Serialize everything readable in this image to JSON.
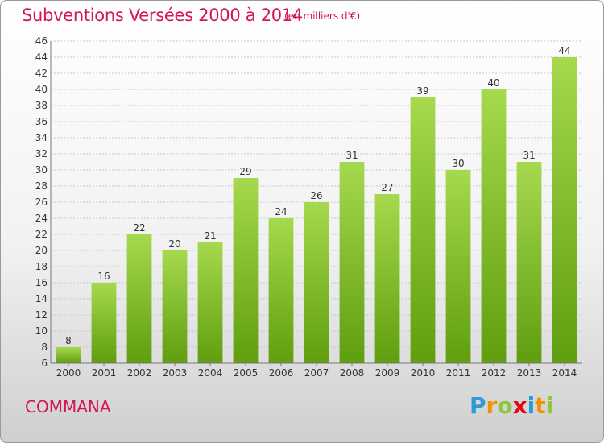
{
  "header": {
    "title": "Subventions Versées 2000 à 2014",
    "subtitle": "(en milliers d'€)"
  },
  "footer": {
    "commune": "COMMANA",
    "logo_letters": [
      "P",
      "r",
      "o",
      "x",
      "i",
      "t",
      "i"
    ],
    "logo_colors": [
      "#2e9bd6",
      "#f39200",
      "#8dc63f",
      "#e30613",
      "#2e9bd6",
      "#f39200",
      "#8dc63f"
    ]
  },
  "colors": {
    "bar_top": "#a6d94e",
    "bar_bottom": "#5f9e0f",
    "grid": "#c8c8c8",
    "text": "#333333",
    "accent": "#d4145a"
  },
  "chart_data": {
    "type": "bar",
    "categories": [
      "2000",
      "2001",
      "2002",
      "2003",
      "2004",
      "2005",
      "2006",
      "2007",
      "2008",
      "2009",
      "2010",
      "2011",
      "2012",
      "2013",
      "2014"
    ],
    "values": [
      8,
      16,
      22,
      20,
      21,
      29,
      24,
      26,
      31,
      27,
      39,
      30,
      40,
      31,
      44
    ],
    "title": "Subventions Versées 2000 à 2014",
    "subtitle": "(en milliers d'€)",
    "ylim": [
      6,
      46
    ],
    "yticks": [
      6,
      8,
      10,
      12,
      14,
      16,
      18,
      20,
      22,
      24,
      26,
      28,
      30,
      32,
      34,
      36,
      38,
      40,
      42,
      44,
      46
    ],
    "grid": true,
    "legend": "none"
  }
}
